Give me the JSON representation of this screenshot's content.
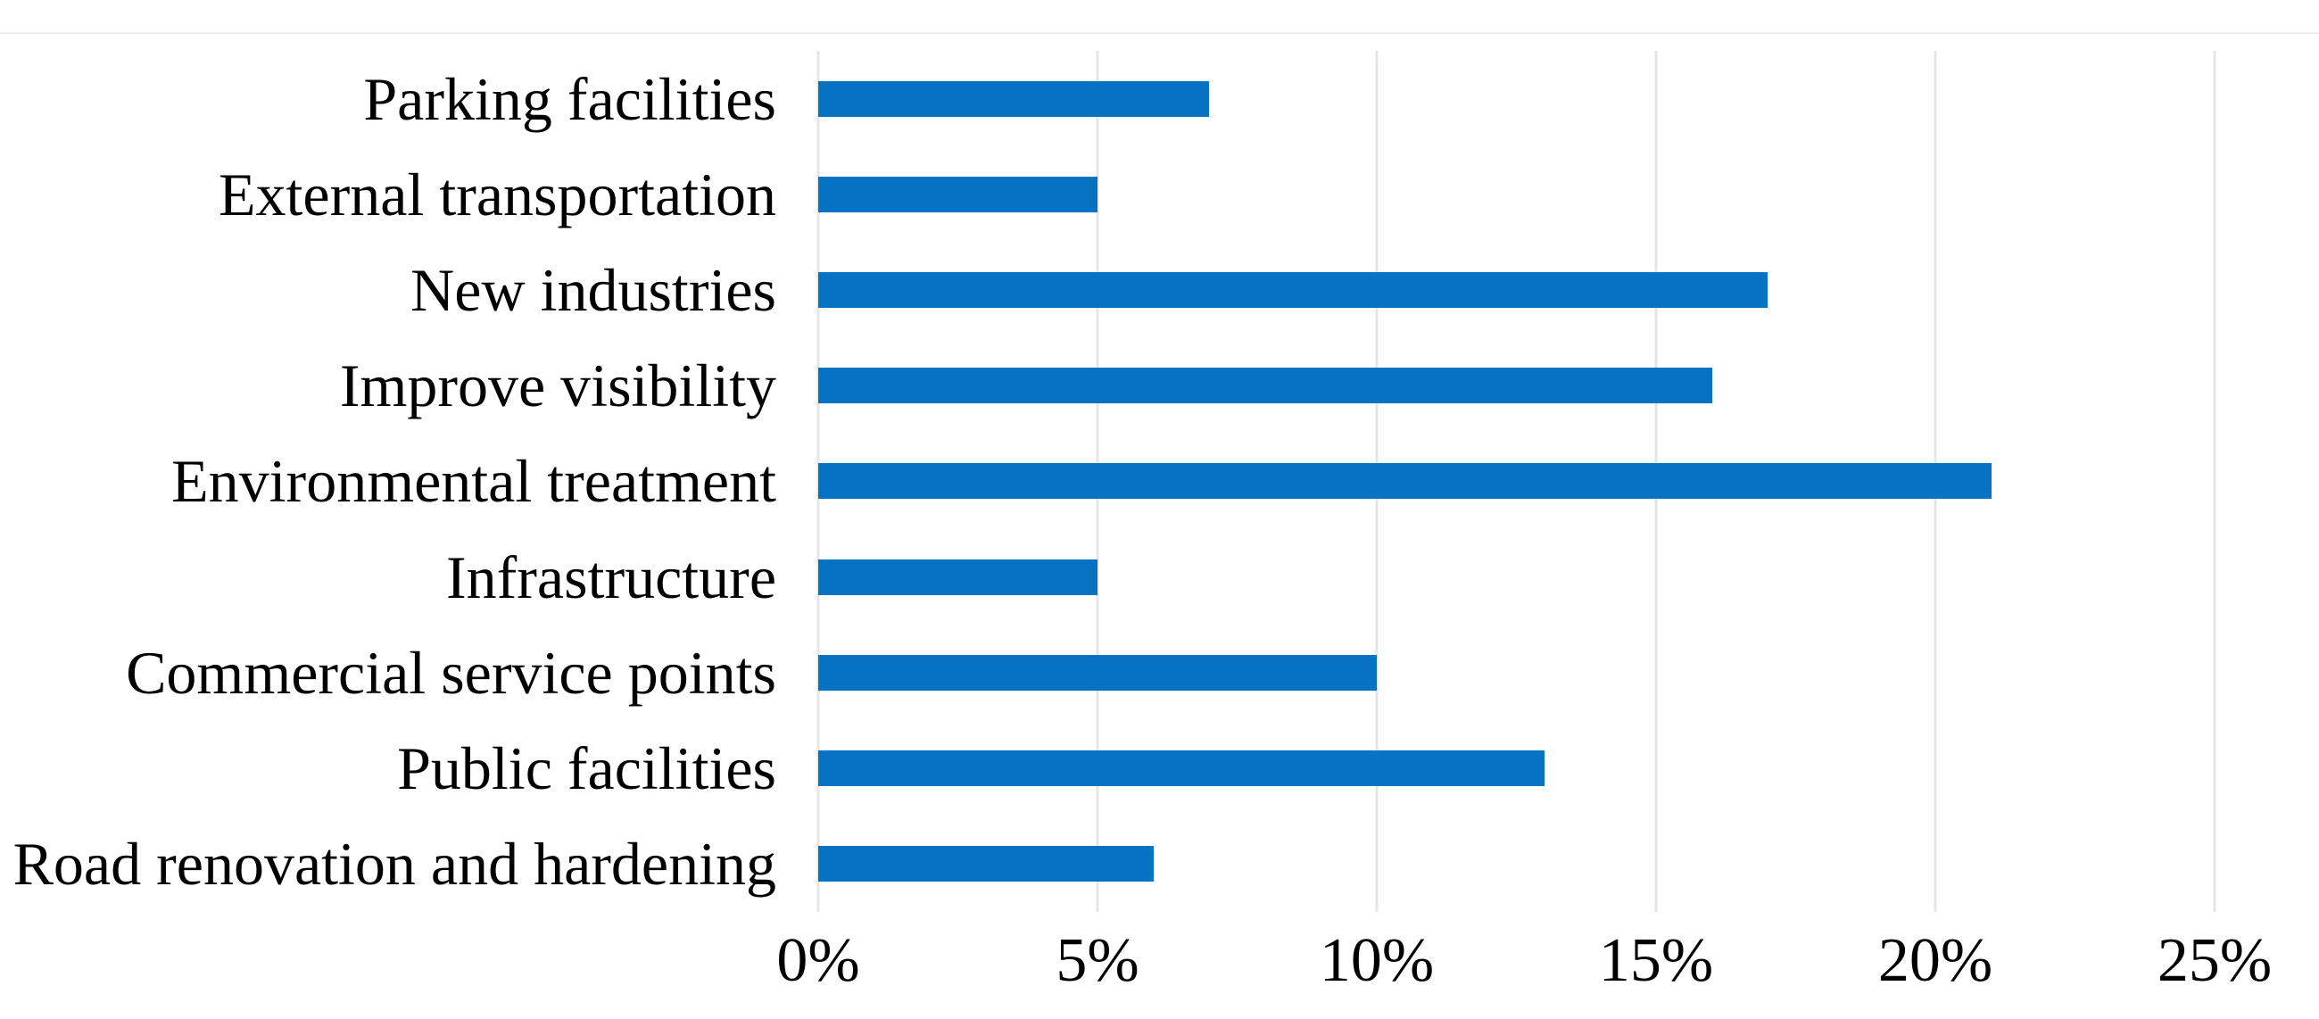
{
  "chart_data": {
    "type": "bar",
    "orientation": "horizontal",
    "title": "",
    "xlabel": "",
    "ylabel": "",
    "categories": [
      "Parking facilities",
      "External transportation",
      "New industries",
      "Improve visibility",
      "Environmental treatment",
      "Infrastructure",
      "Commercial service points",
      "Public facilities",
      "Road renovation and hardening"
    ],
    "values": [
      7,
      5,
      17,
      16,
      21,
      5,
      10,
      13,
      6
    ],
    "value_unit": "%",
    "x_axis": {
      "min": 0,
      "max": 25,
      "tick_values": [
        0,
        5,
        10,
        15,
        20,
        25
      ],
      "tick_labels": [
        "0%",
        "5%",
        "10%",
        "15%",
        "20%",
        "25%"
      ]
    },
    "grid": "vertical-gridlines-on",
    "legend": "none",
    "colors": {
      "bar": "#0772c2",
      "gridline": "#e6e6e6",
      "top_border": "#efefef",
      "text": "#000000",
      "background": "#ffffff"
    }
  }
}
